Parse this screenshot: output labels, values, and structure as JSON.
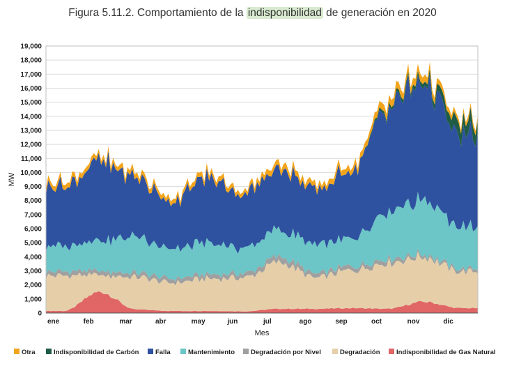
{
  "title_pre": "Figura 5.11.2. Comportamiento de la ",
  "title_hl": "indisponibilidad",
  "title_post": " de generación en 2020",
  "chart_data": {
    "type": "area",
    "stacked": true,
    "xlabel": "Mes",
    "ylabel": "MW",
    "ylim": [
      0,
      19000
    ],
    "yticks": [
      "0",
      "1,000",
      "2,000",
      "3,000",
      "4,000",
      "5,000",
      "6,000",
      "7,000",
      "8,000",
      "9,000",
      "10,000",
      "11,000",
      "12,000",
      "13,000",
      "14,000",
      "15,000",
      "16,000",
      "17,000",
      "18,000",
      "19,000"
    ],
    "categories": [
      "ene",
      "feb",
      "mar",
      "abr",
      "may",
      "jun",
      "jul",
      "ago",
      "sep",
      "oct",
      "nov",
      "dic"
    ],
    "legend": "bottom",
    "grid": true,
    "series": [
      {
        "name": "Indisponibilidad de Gas Natural",
        "color": "#e06666",
        "values": [
          150,
          1500,
          250,
          150,
          150,
          120,
          300,
          300,
          350,
          300,
          800,
          350
        ]
      },
      {
        "name": "Degradación",
        "color": "#e6cfa8",
        "values": [
          2500,
          1200,
          2300,
          2000,
          2300,
          2400,
          3300,
          2200,
          2700,
          3300,
          3200,
          2600
        ]
      },
      {
        "name": "Degradación por Nivel",
        "color": "#a0a0a0",
        "values": [
          300,
          300,
          300,
          300,
          300,
          300,
          400,
          300,
          300,
          300,
          200,
          200
        ]
      },
      {
        "name": "Mantenimiento",
        "color": "#6cc5c6",
        "values": [
          1800,
          2200,
          2600,
          2100,
          2200,
          1800,
          1900,
          2100,
          1900,
          3200,
          3900,
          3000
        ]
      },
      {
        "name": "Falla",
        "color": "#2f52a0",
        "values": [
          4300,
          5600,
          4200,
          3400,
          4600,
          3900,
          4400,
          3800,
          4900,
          7500,
          8400,
          6400
        ]
      },
      {
        "name": "Indisponibilidad de Carbón",
        "color": "#1f5c46",
        "values": [
          0,
          0,
          0,
          0,
          0,
          0,
          0,
          0,
          0,
          200,
          300,
          900
        ]
      },
      {
        "name": "Otra",
        "color": "#f2a51c",
        "values": [
          350,
          300,
          350,
          300,
          350,
          300,
          400,
          350,
          400,
          500,
          500,
          300
        ]
      }
    ]
  }
}
